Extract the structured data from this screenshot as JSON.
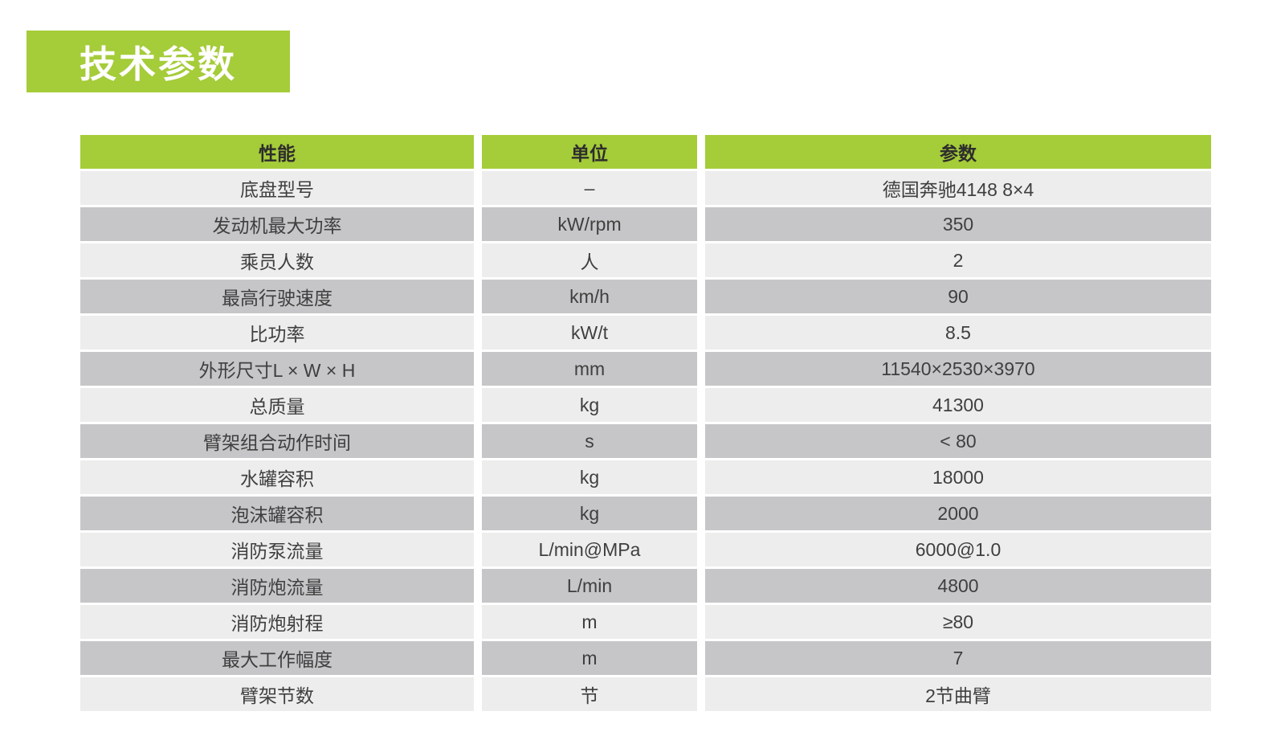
{
  "page": {
    "title": "技术参数"
  },
  "colors": {
    "accent_green": "#a5cc39",
    "row_light": "#ededee",
    "row_dark": "#c6c6c8",
    "header_text": "#2d2d2d",
    "body_text": "#3f3f3f"
  },
  "table": {
    "headers": [
      "性能",
      "单位",
      "参数"
    ],
    "rows": [
      {
        "label": "底盘型号",
        "unit": "–",
        "value": "德国奔驰4148 8×4"
      },
      {
        "label": "发动机最大功率",
        "unit": "kW/rpm",
        "value": "350"
      },
      {
        "label": "乘员人数",
        "unit": "人",
        "value": "2"
      },
      {
        "label": "最高行驶速度",
        "unit": "km/h",
        "value": "90"
      },
      {
        "label": "比功率",
        "unit": "kW/t",
        "value": "8.5"
      },
      {
        "label": "外形尺寸L × W × H",
        "unit": "mm",
        "value": "11540×2530×3970"
      },
      {
        "label": "总质量",
        "unit": "kg",
        "value": "41300"
      },
      {
        "label": "臂架组合动作时间",
        "unit": "s",
        "value": "< 80"
      },
      {
        "label": "水罐容积",
        "unit": "kg",
        "value": "18000"
      },
      {
        "label": "泡沫罐容积",
        "unit": "kg",
        "value": "2000"
      },
      {
        "label": "消防泵流量",
        "unit": "L/min@MPa",
        "value": "6000@1.0"
      },
      {
        "label": "消防炮流量",
        "unit": "L/min",
        "value": "4800"
      },
      {
        "label": "消防炮射程",
        "unit": "m",
        "value": "≥80"
      },
      {
        "label": "最大工作幅度",
        "unit": "m",
        "value": "7"
      },
      {
        "label": "臂架节数",
        "unit": "节",
        "value": "2节曲臂"
      }
    ]
  }
}
